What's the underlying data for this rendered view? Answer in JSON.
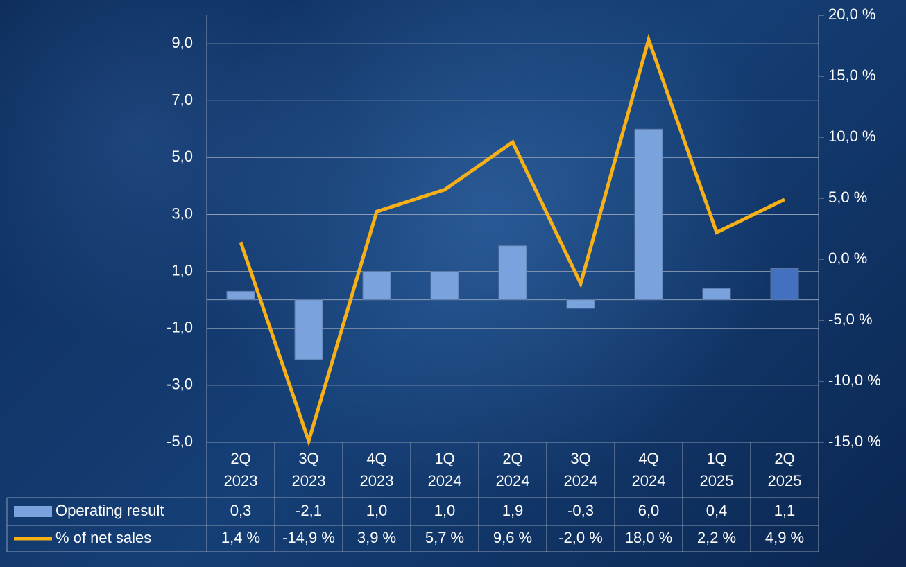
{
  "chart_data": {
    "type": "bar",
    "categories": [
      "2Q\n2023",
      "3Q\n2023",
      "4Q\n2023",
      "1Q\n2024",
      "2Q\n2024",
      "3Q\n2024",
      "4Q\n2024",
      "1Q\n2025",
      "2Q\n2025"
    ],
    "series": [
      {
        "name": "Operating result",
        "type": "bar",
        "color": "#7aa2dc",
        "colors": [
          "#7aa2dc",
          "#7aa2dc",
          "#7aa2dc",
          "#7aa2dc",
          "#7aa2dc",
          "#7aa2dc",
          "#7aa2dc",
          "#7aa2dc",
          "#4470c0"
        ],
        "values": [
          0.3,
          -2.1,
          1.0,
          1.0,
          1.9,
          -0.3,
          6.0,
          0.4,
          1.1
        ],
        "value_labels": [
          "0,3",
          "-2,1",
          "1,0",
          "1,0",
          "1,9",
          "-0,3",
          "6,0",
          "0,4",
          "1,1"
        ]
      },
      {
        "name": "% of net sales",
        "type": "line",
        "axis": "y2",
        "color": "#f7b117",
        "values": [
          1.4,
          -14.9,
          3.9,
          5.7,
          9.6,
          -2.0,
          18.0,
          2.2,
          4.9
        ],
        "value_labels": [
          "1,4 %",
          "-14,9 %",
          "3,9 %",
          "5,7 %",
          "9,6 %",
          "-2,0 %",
          "18,0 %",
          "2,2 %",
          "4,9 %"
        ]
      }
    ],
    "ylim": [
      -5,
      10
    ],
    "yticks": [
      {
        "value": -5,
        "label": "-5,0"
      },
      {
        "value": -3,
        "label": "-3,0"
      },
      {
        "value": -1,
        "label": "-1,0"
      },
      {
        "value": 1,
        "label": "1,0"
      },
      {
        "value": 3,
        "label": "3,0"
      },
      {
        "value": 5,
        "label": "5,0"
      },
      {
        "value": 7,
        "label": "7,0"
      },
      {
        "value": 9,
        "label": "9,0"
      }
    ],
    "y2lim": [
      -15,
      20
    ],
    "y2ticks": [
      {
        "value": -15,
        "label": "-15,0 %"
      },
      {
        "value": -10,
        "label": "-10,0 %"
      },
      {
        "value": -5,
        "label": "-5,0 %"
      },
      {
        "value": 0,
        "label": "0,0 %"
      },
      {
        "value": 5,
        "label": "5,0 %"
      },
      {
        "value": 10,
        "label": "10,0 %"
      },
      {
        "value": 15,
        "label": "15,0 %"
      },
      {
        "value": 20,
        "label": "20,0 %"
      }
    ],
    "grid": true,
    "data_table": true
  }
}
